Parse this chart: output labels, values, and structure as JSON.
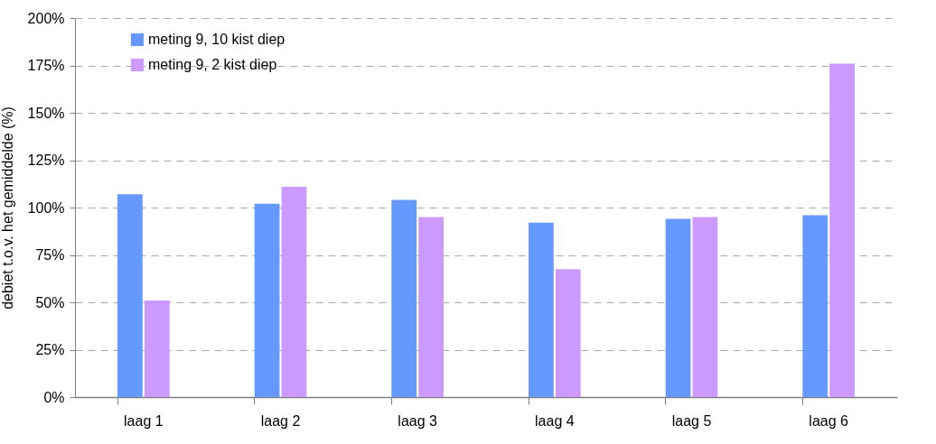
{
  "chart_data": {
    "type": "bar",
    "ylabel": "debiet t.o.v. het gemiddelde (%)",
    "categories": [
      "laag 1",
      "laag 2",
      "laag 3",
      "laag 4",
      "laag 5",
      "laag 6"
    ],
    "series": [
      {
        "name": "meting 9, 10 kist diep",
        "color": "#6699ff",
        "values": [
          107,
          102,
          104,
          92,
          94,
          96
        ]
      },
      {
        "name": "meting 9, 2 kist diep",
        "color": "#cc99ff",
        "values": [
          51,
          111,
          95,
          67.5,
          95,
          176
        ]
      }
    ],
    "ylim": [
      0,
      200
    ],
    "yticks": [
      {
        "value": 0,
        "label": "0%"
      },
      {
        "value": 25,
        "label": "25%"
      },
      {
        "value": 50,
        "label": "50%"
      },
      {
        "value": 75,
        "label": "75%"
      },
      {
        "value": 100,
        "label": "100%"
      },
      {
        "value": 125,
        "label": "125%"
      },
      {
        "value": 150,
        "label": "150%"
      },
      {
        "value": 175,
        "label": "175%"
      },
      {
        "value": 200,
        "label": "200%"
      }
    ],
    "grid": "y",
    "legend": "top left"
  }
}
